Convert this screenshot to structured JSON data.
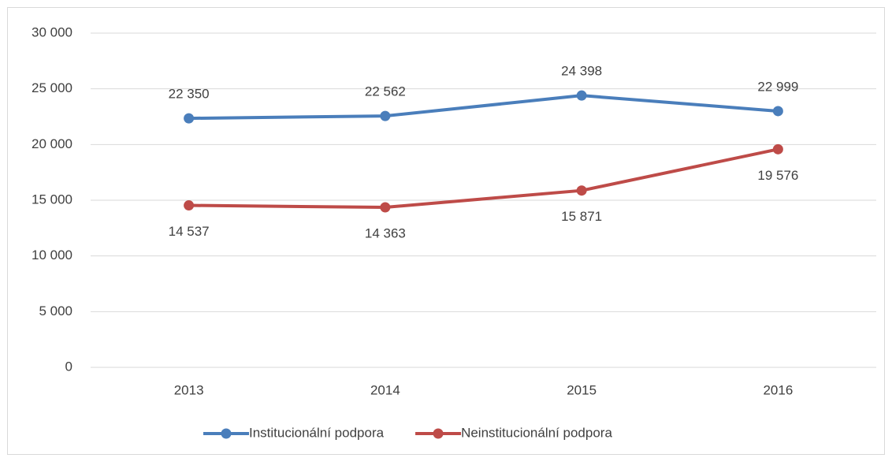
{
  "chart_data": {
    "type": "line",
    "categories": [
      "2013",
      "2014",
      "2015",
      "2016"
    ],
    "series": [
      {
        "name": "Institucionální podpora",
        "color": "#4a7ebb",
        "values": [
          22350,
          22562,
          24398,
          22999
        ],
        "value_labels": [
          "22 350",
          "22 562",
          "24 398",
          "22 999"
        ]
      },
      {
        "name": "Neinstitucionální podpora",
        "color": "#be4b48",
        "values": [
          14537,
          14363,
          15871,
          19576
        ],
        "value_labels": [
          "14 537",
          "14 363",
          "15 871",
          "19 576"
        ]
      }
    ],
    "ylim": [
      0,
      30000
    ],
    "yticks": [
      {
        "value": 0,
        "label": "0"
      },
      {
        "value": 5000,
        "label": "5 000"
      },
      {
        "value": 10000,
        "label": "10 000"
      },
      {
        "value": 15000,
        "label": "15 000"
      },
      {
        "value": 20000,
        "label": "20 000"
      },
      {
        "value": 25000,
        "label": "25 000"
      },
      {
        "value": 30000,
        "label": "30 000"
      }
    ],
    "grid": true,
    "legend": "bottom"
  }
}
